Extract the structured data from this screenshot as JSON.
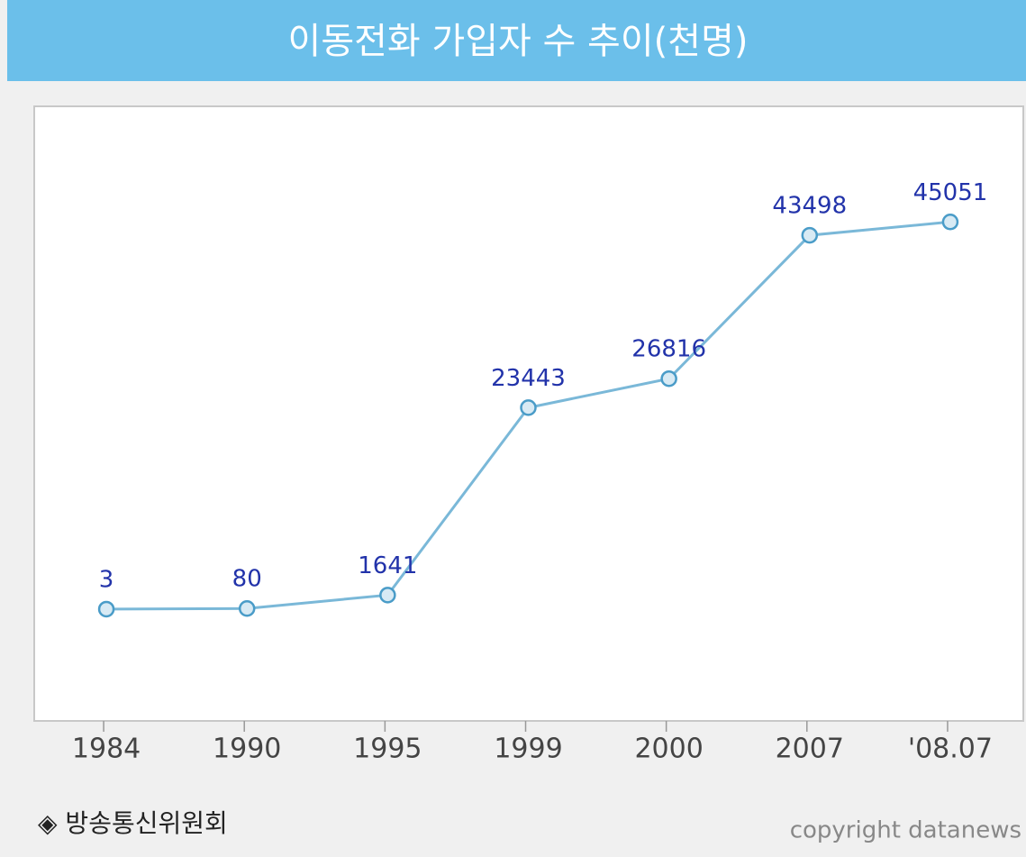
{
  "chart_data": {
    "type": "line",
    "title": "이동전화 가입자 수 추이(천명)",
    "categories": [
      "1984",
      "1990",
      "1995",
      "1999",
      "2000",
      "2007",
      "'08.07"
    ],
    "values": [
      3,
      80,
      1641,
      23443,
      26816,
      43498,
      45051
    ],
    "color": "#7ab8d8",
    "ylim": [
      -13000,
      58500
    ],
    "source": "◈ 방송통신위원회",
    "copyright": "copyright datanews"
  }
}
